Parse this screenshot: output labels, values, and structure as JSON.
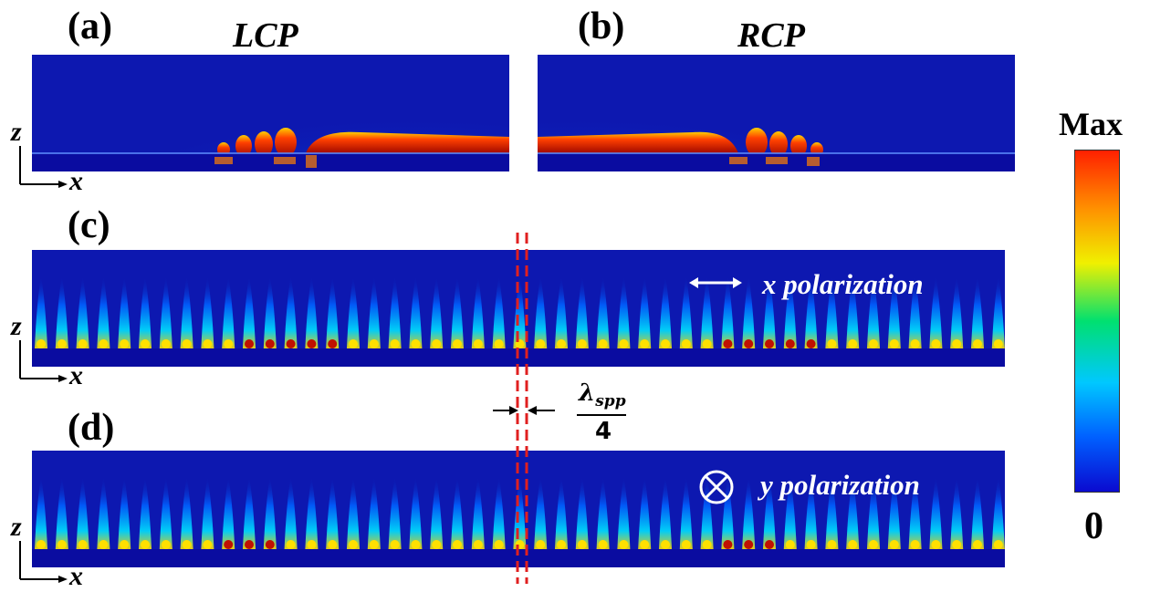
{
  "panels": {
    "a": {
      "label": "(a)",
      "title": "LCP"
    },
    "b": {
      "label": "(b)",
      "title": "RCP"
    },
    "c": {
      "label": "(c)",
      "annotation": "x polarization"
    },
    "d": {
      "label": "(d)",
      "annotation": "y polarization"
    }
  },
  "axes": {
    "z": "z",
    "x": "x"
  },
  "wavelength": {
    "numerator_symbol": "λ",
    "subscript": "spp",
    "denominator": "4"
  },
  "colorbar": {
    "max_label": "Max",
    "min_label": "0",
    "colors": [
      "#0a0ad0",
      "#0060ff",
      "#00c8ff",
      "#00e070",
      "#f0f000",
      "#ff9000",
      "#ff2000"
    ]
  },
  "field_colors": {
    "background": "#0d18b0",
    "hot": "#b01000",
    "mid": "#ff9000",
    "cyan": "#00d0ff"
  }
}
